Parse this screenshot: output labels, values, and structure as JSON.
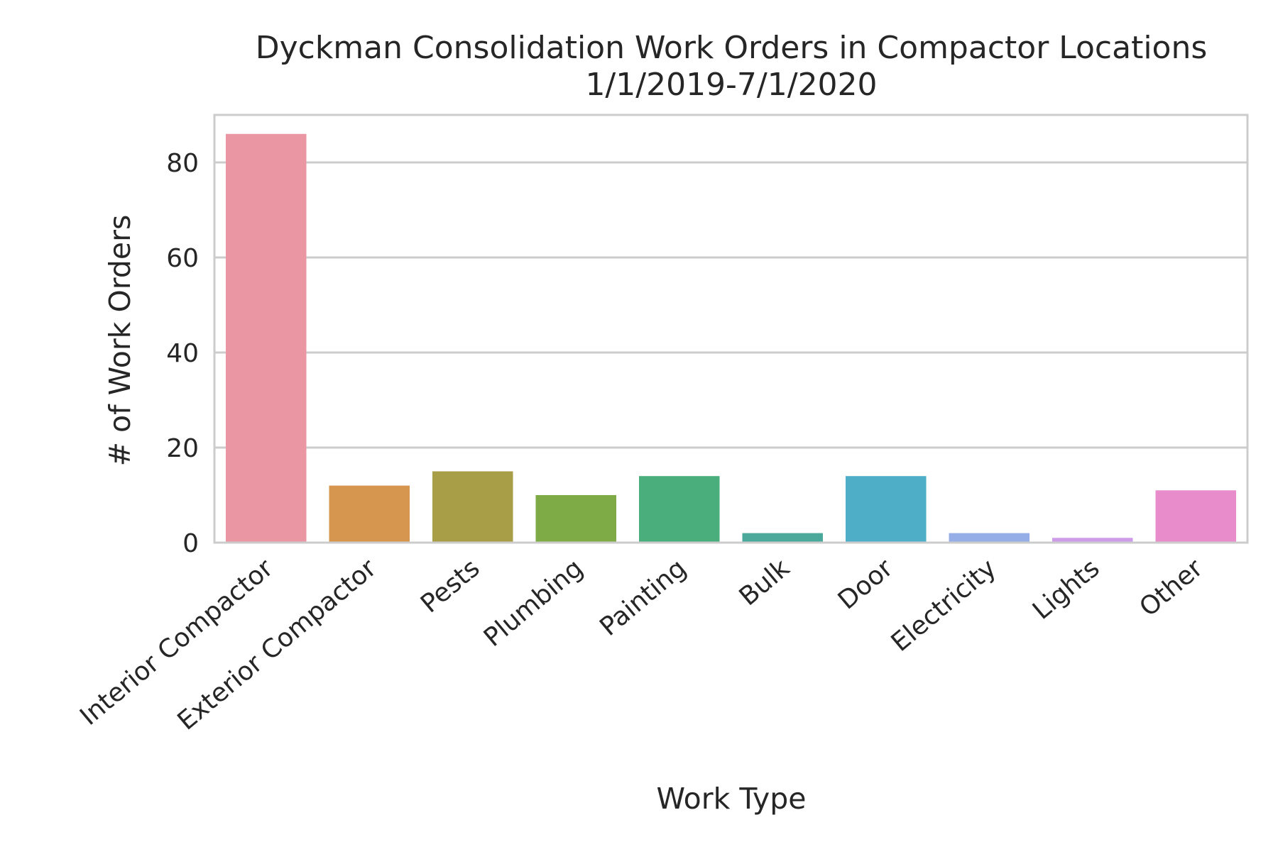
{
  "chart_data": {
    "type": "bar",
    "title": "Dyckman Consolidation Work Orders in Compactor Locations",
    "subtitle": "1/1/2019-7/1/2020",
    "xlabel": "Work Type",
    "ylabel": "# of Work Orders",
    "categories": [
      "Interior Compactor",
      "Exterior Compactor",
      "Pests",
      "Plumbing",
      "Painting",
      "Bulk",
      "Door",
      "Electricity",
      "Lights",
      "Other"
    ],
    "values": [
      86,
      12,
      15,
      10,
      14,
      2,
      14,
      2,
      1,
      11
    ],
    "colors": [
      "#ea96a3",
      "#d6964f",
      "#a99e48",
      "#7fab47",
      "#4aae7c",
      "#4ba99b",
      "#4eaec7",
      "#95aee7",
      "#ce9be9",
      "#e88ccb"
    ],
    "ylim": [
      0,
      90
    ],
    "yticks": [
      0,
      20,
      40,
      60,
      80
    ],
    "grid": "horizontal",
    "legend": "none"
  }
}
